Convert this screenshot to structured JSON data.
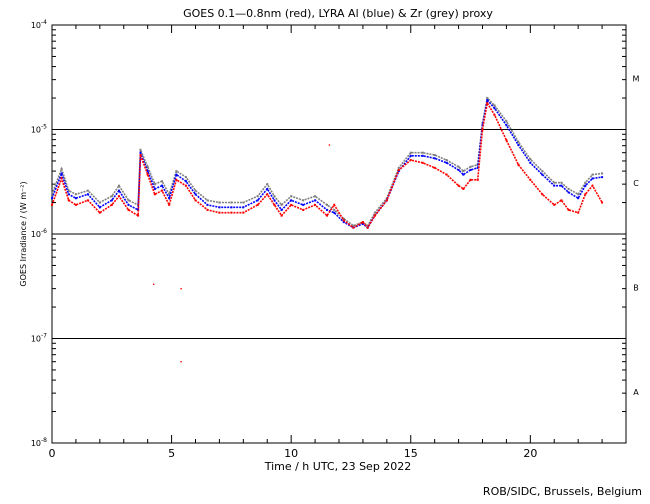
{
  "chart_data": {
    "type": "scatter",
    "title": "GOES 0.1—0.8nm (red), LYRA Al (blue) & Zr (grey) proxy",
    "xlabel": "Time / h UTC, 23 Sep 2022",
    "ylabel": "GOES Irradiance / (W m⁻²)",
    "xlim": [
      0,
      24
    ],
    "ylim": [
      1e-08,
      0.0001
    ],
    "yscale": "log",
    "grid": "horizontal lines at decades 1e-5, 1e-6, 1e-7",
    "x_ticks": [
      "0",
      "5",
      "10",
      "15",
      "20"
    ],
    "y_ticks": [
      {
        "base": "10",
        "exp": "-4"
      },
      {
        "base": "10",
        "exp": "-5"
      },
      {
        "base": "10",
        "exp": "-6"
      },
      {
        "base": "10",
        "exp": "-7"
      },
      {
        "base": "10",
        "exp": "-8"
      }
    ],
    "flare_classes": [
      "M",
      "C",
      "B",
      "A"
    ],
    "hours": [
      0,
      0.4,
      0.7,
      1.0,
      1.5,
      2.0,
      2.5,
      2.8,
      3.2,
      3.6,
      3.7,
      4.0,
      4.3,
      4.6,
      4.9,
      5.2,
      5.6,
      6.0,
      6.5,
      7.0,
      7.5,
      8.0,
      8.6,
      9.0,
      9.3,
      9.6,
      10.0,
      10.5,
      11.0,
      11.5,
      11.8,
      12.2,
      12.6,
      13.0,
      13.2,
      13.5,
      14.0,
      14.5,
      15.0,
      15.5,
      16.0,
      16.5,
      17.0,
      17.2,
      17.5,
      17.8,
      18.0,
      18.2,
      18.5,
      19.0,
      19.5,
      20.0,
      20.5,
      21.0,
      21.3,
      21.6,
      22.0,
      22.3,
      22.6,
      23.0
    ],
    "series": [
      {
        "name": "GOES 0.1-0.8nm",
        "color": "#ff0000",
        "values": [
          1.9e-06,
          3.4e-06,
          2.1e-06,
          1.9e-06,
          2.1e-06,
          1.6e-06,
          1.9e-06,
          2.3e-06,
          1.7e-06,
          1.5e-06,
          5.7e-06,
          3.7e-06,
          2.4e-06,
          2.6e-06,
          1.9e-06,
          3.3e-06,
          2.9e-06,
          2.1e-06,
          1.7e-06,
          1.6e-06,
          1.6e-06,
          1.6e-06,
          1.9e-06,
          2.4e-06,
          1.9e-06,
          1.5e-06,
          1.9e-06,
          1.7e-06,
          1.9e-06,
          1.5e-06,
          1.9e-06,
          1.35e-06,
          1.15e-06,
          1.3e-06,
          1.15e-06,
          1.5e-06,
          2.1e-06,
          4.1e-06,
          5.1e-06,
          4.8e-06,
          4.3e-06,
          3.7e-06,
          2.9e-06,
          2.7e-06,
          3.3e-06,
          3.3e-06,
          1e-05,
          1.79e-05,
          1.38e-05,
          7.9e-06,
          4.6e-06,
          3.3e-06,
          2.4e-06,
          1.9e-06,
          2.1e-06,
          1.7e-06,
          1.6e-06,
          2.4e-06,
          2.9e-06,
          2e-06
        ],
        "outliers": [
          [
            4.25,
            3.3e-07
          ],
          [
            5.4,
            3e-07
          ],
          [
            5.4,
            6e-08
          ],
          [
            11.6,
            7.1e-06
          ]
        ]
      },
      {
        "name": "LYRA Al proxy",
        "color": "#0000ff",
        "values": [
          2.2e-06,
          3.8e-06,
          2.4e-06,
          2.2e-06,
          2.4e-06,
          1.8e-06,
          2.1e-06,
          2.6e-06,
          1.9e-06,
          1.7e-06,
          6e-06,
          4e-06,
          2.7e-06,
          2.9e-06,
          2.2e-06,
          3.7e-06,
          3.2e-06,
          2.4e-06,
          1.9e-06,
          1.8e-06,
          1.8e-06,
          1.8e-06,
          2.1e-06,
          2.7e-06,
          2.1e-06,
          1.7e-06,
          2.1e-06,
          1.9e-06,
          2.1e-06,
          1.7e-06,
          1.6e-06,
          1.3e-06,
          1.15e-06,
          1.25e-06,
          1.15e-06,
          1.5e-06,
          2.1e-06,
          4e-06,
          5.6e-06,
          5.6e-06,
          5.3e-06,
          4.8e-06,
          4.1e-06,
          3.7e-06,
          4.1e-06,
          4.3e-06,
          1.1e-05,
          1.91e-05,
          1.6e-05,
          1.1e-05,
          7.1e-06,
          4.8e-06,
          3.7e-06,
          2.9e-06,
          2.9e-06,
          2.5e-06,
          2.2e-06,
          2.9e-06,
          3.4e-06,
          3.5e-06
        ]
      },
      {
        "name": "LYRA Zr proxy",
        "color": "#808080",
        "values": [
          2.4e-06,
          4.2e-06,
          2.6e-06,
          2.4e-06,
          2.6e-06,
          2e-06,
          2.3e-06,
          2.9e-06,
          2.1e-06,
          1.9e-06,
          6.4e-06,
          4.4e-06,
          3e-06,
          3.2e-06,
          2.4e-06,
          4e-06,
          3.5e-06,
          2.6e-06,
          2.1e-06,
          2e-06,
          2e-06,
          2e-06,
          2.3e-06,
          3e-06,
          2.3e-06,
          1.9e-06,
          2.3e-06,
          2.1e-06,
          2.3e-06,
          1.9e-06,
          1.7e-06,
          1.4e-06,
          1.2e-06,
          1.3e-06,
          1.2e-06,
          1.6e-06,
          2.2e-06,
          4.3e-06,
          6e-06,
          6e-06,
          5.7e-06,
          5.1e-06,
          4.4e-06,
          4e-06,
          4.4e-06,
          4.6e-06,
          1.15e-05,
          2e-05,
          1.7e-05,
          1.2e-05,
          7.6e-06,
          5.2e-06,
          4e-06,
          3.1e-06,
          3.1e-06,
          2.7e-06,
          2.4e-06,
          3.1e-06,
          3.7e-06,
          3.8e-06
        ]
      }
    ],
    "credit": "ROB/SIDC, Brussels, Belgium"
  }
}
